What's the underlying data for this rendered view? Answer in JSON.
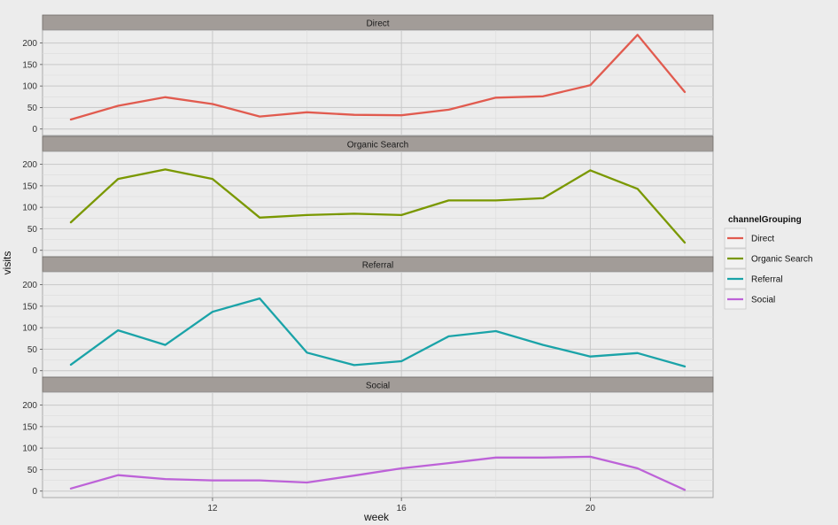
{
  "chart_data": {
    "type": "line",
    "facet_by": "channelGrouping",
    "xlabel": "week",
    "ylabel": "visits",
    "xlim": [
      8.4,
      22.6
    ],
    "ylim": [
      -15,
      230
    ],
    "x_ticks": [
      12,
      16,
      20
    ],
    "y_ticks": [
      0,
      50,
      100,
      150,
      200
    ],
    "grid": true,
    "legend": {
      "title": "channelGrouping",
      "position": "right"
    },
    "x": [
      9,
      10,
      11,
      12,
      13,
      14,
      15,
      16,
      17,
      18,
      19,
      20,
      21,
      22
    ],
    "series": [
      {
        "name": "Direct",
        "color": "#E15B4F",
        "values": [
          22,
          54,
          74,
          58,
          29,
          39,
          33,
          32,
          45,
          73,
          76,
          102,
          219,
          86
        ]
      },
      {
        "name": "Organic Search",
        "color": "#7A9800",
        "values": [
          65,
          166,
          188,
          166,
          76,
          82,
          85,
          82,
          116,
          116,
          121,
          186,
          143,
          18
        ]
      },
      {
        "name": "Referral",
        "color": "#1AA3A8",
        "values": [
          14,
          94,
          60,
          137,
          168,
          42,
          13,
          22,
          80,
          92,
          60,
          33,
          41,
          10
        ]
      },
      {
        "name": "Social",
        "color": "#BD62D8",
        "values": [
          6,
          37,
          28,
          25,
          25,
          20,
          36,
          53,
          65,
          78,
          78,
          80,
          53,
          3
        ]
      }
    ]
  }
}
